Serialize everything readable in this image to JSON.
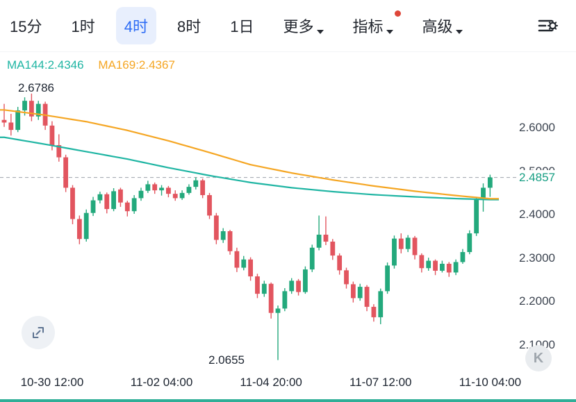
{
  "toolbar": {
    "tabs": [
      {
        "label": "15分",
        "active": false
      },
      {
        "label": "1时",
        "active": false
      },
      {
        "label": "4时",
        "active": true
      },
      {
        "label": "8时",
        "active": false
      },
      {
        "label": "1日",
        "active": false
      },
      {
        "label": "更多",
        "active": false,
        "dropdown": true
      },
      {
        "label": "指标",
        "active": false,
        "dropdown": true,
        "notification_dot": true
      },
      {
        "label": "高级",
        "active": false,
        "dropdown": true
      }
    ],
    "settings_icon": "chart-settings-icon"
  },
  "watermark": {
    "label": "K"
  },
  "colors": {
    "up_candle": "#23a97c",
    "down_candle": "#e2555f",
    "ma144_line": "#1fb5a3",
    "ma169_line": "#f5a623",
    "last_price": "#169e83",
    "dashed_line": "#a8adb4",
    "active_tab_text": "#2d6cf5",
    "active_tab_bg": "#e8effd",
    "notification_dot": "#de4639"
  },
  "chart_data": {
    "type": "candlestick",
    "interval": "4时",
    "title": "",
    "ylim": [
      2.04,
      2.72
    ],
    "y_ticks": [
      "2.6000",
      "2.5000",
      "2.4000",
      "2.3000",
      "2.2000",
      "2.1000"
    ],
    "x_ticks": [
      {
        "label": "10-30 12:00",
        "index": 7
      },
      {
        "label": "11-02 04:00",
        "index": 23
      },
      {
        "label": "11-04 20:00",
        "index": 39
      },
      {
        "label": "11-07 12:00",
        "index": 55
      },
      {
        "label": "11-10 04:00",
        "index": 71
      }
    ],
    "high_annotation": "2.6786",
    "low_annotation": "2.0655",
    "last_price": "2.4857",
    "ma144": {
      "label": "MA144:2.4346",
      "value": 2.4346,
      "points": [
        [
          0,
          2.578
        ],
        [
          6,
          2.562
        ],
        [
          12,
          2.545
        ],
        [
          18,
          2.528
        ],
        [
          24,
          2.508
        ],
        [
          30,
          2.49
        ],
        [
          36,
          2.474
        ],
        [
          42,
          2.462
        ],
        [
          48,
          2.453
        ],
        [
          54,
          2.446
        ],
        [
          60,
          2.441
        ],
        [
          66,
          2.437
        ],
        [
          71,
          2.4346
        ]
      ]
    },
    "ma169": {
      "label": "MA169:2.4367",
      "value": 2.4367,
      "points": [
        [
          0,
          2.641
        ],
        [
          6,
          2.629
        ],
        [
          12,
          2.614
        ],
        [
          18,
          2.594
        ],
        [
          24,
          2.57
        ],
        [
          30,
          2.543
        ],
        [
          36,
          2.515
        ],
        [
          42,
          2.496
        ],
        [
          48,
          2.48
        ],
        [
          54,
          2.466
        ],
        [
          60,
          2.454
        ],
        [
          66,
          2.444
        ],
        [
          71,
          2.4367
        ]
      ]
    },
    "candles": [
      [
        2.618,
        2.655,
        2.602,
        2.612
      ],
      [
        2.612,
        2.632,
        2.582,
        2.595
      ],
      [
        2.595,
        2.648,
        2.59,
        2.64
      ],
      [
        2.64,
        2.67,
        2.628,
        2.662
      ],
      [
        2.662,
        2.6786,
        2.615,
        2.626
      ],
      [
        2.626,
        2.662,
        2.618,
        2.655
      ],
      [
        2.655,
        2.66,
        2.595,
        2.605
      ],
      [
        2.605,
        2.615,
        2.548,
        2.56
      ],
      [
        2.56,
        2.585,
        2.522,
        2.532
      ],
      [
        2.532,
        2.538,
        2.452,
        2.462
      ],
      [
        2.462,
        2.468,
        2.378,
        2.39
      ],
      [
        2.39,
        2.398,
        2.332,
        2.344
      ],
      [
        2.344,
        2.412,
        2.338,
        2.404
      ],
      [
        2.404,
        2.441,
        2.397,
        2.433
      ],
      [
        2.433,
        2.453,
        2.426,
        2.447
      ],
      [
        2.447,
        2.451,
        2.403,
        2.413
      ],
      [
        2.413,
        2.461,
        2.408,
        2.454
      ],
      [
        2.458,
        2.462,
        2.418,
        2.428
      ],
      [
        2.428,
        2.432,
        2.396,
        2.408
      ],
      [
        2.408,
        2.445,
        2.402,
        2.438
      ],
      [
        2.438,
        2.462,
        2.432,
        2.455
      ],
      [
        2.455,
        2.478,
        2.45,
        2.47
      ],
      [
        2.47,
        2.474,
        2.448,
        2.456
      ],
      [
        2.456,
        2.468,
        2.444,
        2.462
      ],
      [
        2.462,
        2.466,
        2.44,
        2.448
      ],
      [
        2.448,
        2.456,
        2.432,
        2.438
      ],
      [
        2.438,
        2.456,
        2.434,
        2.45
      ],
      [
        2.45,
        2.47,
        2.446,
        2.464
      ],
      [
        2.464,
        2.486,
        2.458,
        2.479
      ],
      [
        2.479,
        2.483,
        2.438,
        2.445
      ],
      [
        2.445,
        2.45,
        2.39,
        2.398
      ],
      [
        2.398,
        2.404,
        2.332,
        2.342
      ],
      [
        2.342,
        2.369,
        2.335,
        2.362
      ],
      [
        2.362,
        2.365,
        2.308,
        2.316
      ],
      [
        2.316,
        2.324,
        2.268,
        2.278
      ],
      [
        2.278,
        2.305,
        2.272,
        2.297
      ],
      [
        2.297,
        2.302,
        2.248,
        2.258
      ],
      [
        2.258,
        2.264,
        2.208,
        2.218
      ],
      [
        2.218,
        2.248,
        2.211,
        2.241
      ],
      [
        2.241,
        2.244,
        2.161,
        2.174
      ],
      [
        2.174,
        2.191,
        2.0655,
        2.184
      ],
      [
        2.184,
        2.231,
        2.178,
        2.224
      ],
      [
        2.224,
        2.254,
        2.218,
        2.248
      ],
      [
        2.248,
        2.252,
        2.214,
        2.222
      ],
      [
        2.222,
        2.281,
        2.218,
        2.274
      ],
      [
        2.274,
        2.331,
        2.268,
        2.324
      ],
      [
        2.324,
        2.398,
        2.318,
        2.354
      ],
      [
        2.354,
        2.396,
        2.33,
        2.338
      ],
      [
        2.338,
        2.344,
        2.296,
        2.306
      ],
      [
        2.306,
        2.311,
        2.262,
        2.272
      ],
      [
        2.272,
        2.278,
        2.23,
        2.24
      ],
      [
        2.24,
        2.246,
        2.198,
        2.208
      ],
      [
        2.208,
        2.241,
        2.202,
        2.234
      ],
      [
        2.234,
        2.238,
        2.178,
        2.188
      ],
      [
        2.188,
        2.194,
        2.154,
        2.164
      ],
      [
        2.164,
        2.23,
        2.148,
        2.224
      ],
      [
        2.224,
        2.29,
        2.218,
        2.283
      ],
      [
        2.283,
        2.352,
        2.276,
        2.345
      ],
      [
        2.345,
        2.357,
        2.311,
        2.321
      ],
      [
        2.321,
        2.353,
        2.314,
        2.347
      ],
      [
        2.347,
        2.351,
        2.297,
        2.307
      ],
      [
        2.307,
        2.311,
        2.267,
        2.277
      ],
      [
        2.277,
        2.301,
        2.271,
        2.294
      ],
      [
        2.294,
        2.297,
        2.261,
        2.271
      ],
      [
        2.271,
        2.294,
        2.267,
        2.287
      ],
      [
        2.287,
        2.291,
        2.257,
        2.267
      ],
      [
        2.267,
        2.297,
        2.261,
        2.291
      ],
      [
        2.291,
        2.321,
        2.287,
        2.314
      ],
      [
        2.314,
        2.364,
        2.309,
        2.357
      ],
      [
        2.357,
        2.441,
        2.351,
        2.434
      ],
      [
        2.434,
        2.472,
        2.407,
        2.462
      ],
      [
        2.462,
        2.492,
        2.441,
        2.4857
      ]
    ]
  }
}
